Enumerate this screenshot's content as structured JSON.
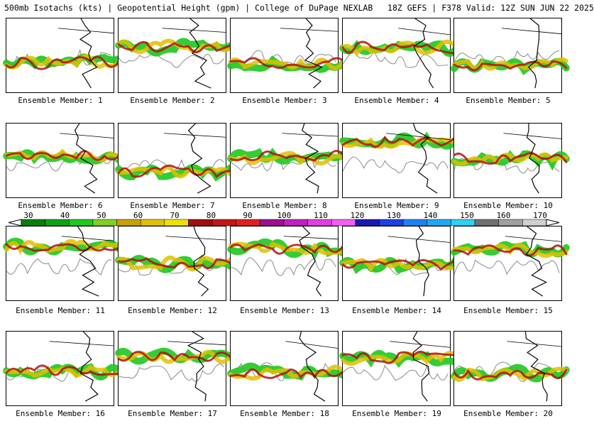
{
  "header": {
    "title": "500mb Isotachs (kts) | Geopotential Height (gpm) | College of DuPage NEXLAB   18Z GEFS | F378 Valid: 12Z SUN JUN 22 2025"
  },
  "panels": [
    {
      "label": "Ensemble Member: 1"
    },
    {
      "label": "Ensemble Member: 2"
    },
    {
      "label": "Ensemble Member: 3"
    },
    {
      "label": "Ensemble Member: 4"
    },
    {
      "label": "Ensemble Member: 5"
    },
    {
      "label": "Ensemble Member: 6"
    },
    {
      "label": "Ensemble Member: 7"
    },
    {
      "label": "Ensemble Member: 8"
    },
    {
      "label": "Ensemble Member: 9"
    },
    {
      "label": "Ensemble Member: 10"
    },
    {
      "label": "Ensemble Member: 11"
    },
    {
      "label": "Ensemble Member: 12"
    },
    {
      "label": "Ensemble Member: 13"
    },
    {
      "label": "Ensemble Member: 14"
    },
    {
      "label": "Ensemble Member: 15"
    },
    {
      "label": "Ensemble Member: 16"
    },
    {
      "label": "Ensemble Member: 17"
    },
    {
      "label": "Ensemble Member: 18"
    },
    {
      "label": "Ensemble Member: 19"
    },
    {
      "label": "Ensemble Member: 20"
    }
  ],
  "colorbar": {
    "labels": [
      "30",
      "40",
      "50",
      "60",
      "70",
      "80",
      "90",
      "100",
      "110",
      "120",
      "130",
      "140",
      "150",
      "160",
      "170"
    ],
    "colors": [
      "#0a7d0a",
      "#12a012",
      "#1ec81e",
      "#7fd020",
      "#c8a000",
      "#e0c000",
      "#f0e000",
      "#a01010",
      "#c01818",
      "#e02020",
      "#9a1090",
      "#c020c0",
      "#e040e0",
      "#f060f0",
      "#1a1ab0",
      "#2040e0",
      "#2080f0",
      "#20a8f0",
      "#30d0f0",
      "#707070",
      "#a0a0a0",
      "#d0d0d0"
    ]
  }
}
